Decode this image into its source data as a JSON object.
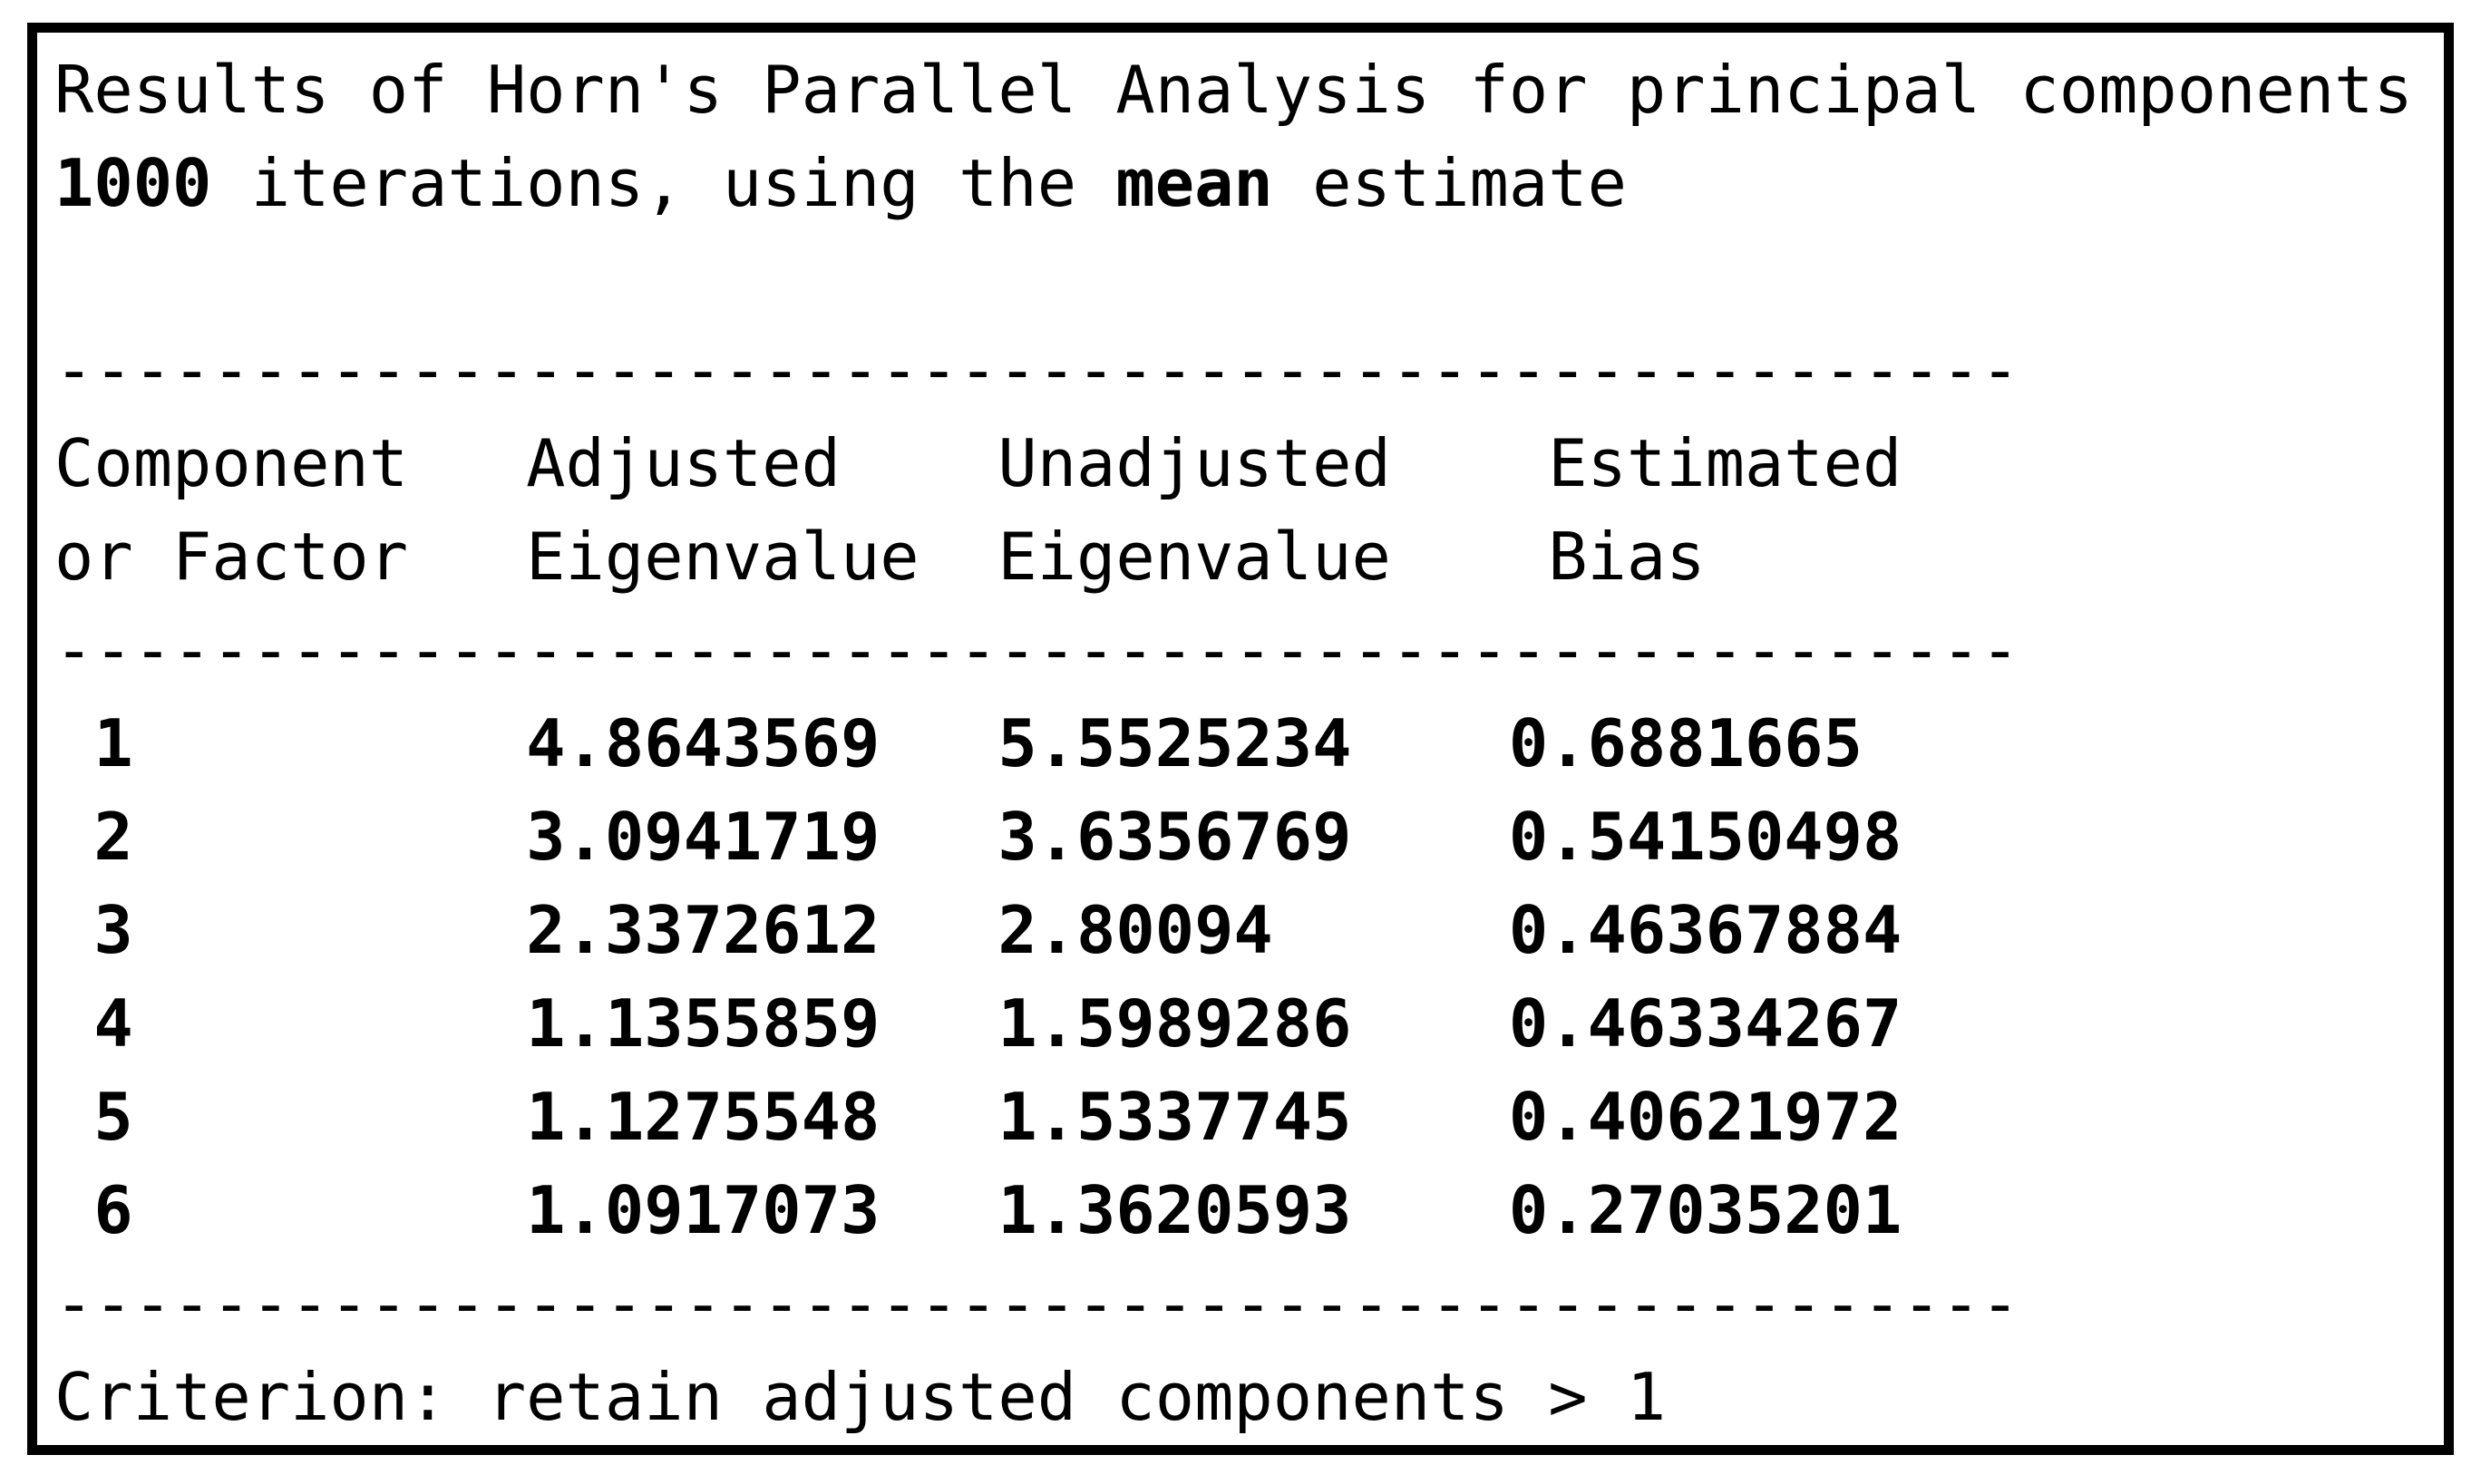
{
  "report": {
    "title": "Results of Horn's Parallel Analysis for principal components",
    "iterations": {
      "count": "1000",
      "middle": " iterations, using the ",
      "estimate_type": "mean",
      "suffix": " estimate"
    },
    "separator": "--------------------------------------------------",
    "criterion": "Criterion: retain adjusted components > 1"
  },
  "table": {
    "header_row1": {
      "col1": "Component",
      "col2": "Adjusted",
      "col3": "Unadjusted",
      "col4": "Estimated"
    },
    "header_row2": {
      "col1": "or Factor",
      "col2": "Eigenvalue",
      "col3": "Eigenvalue",
      "col4": "Bias"
    },
    "rows": [
      {
        "component": "1",
        "adjusted": "4.8643569",
        "unadjusted": "5.5525234",
        "bias": "0.6881665"
      },
      {
        "component": "2",
        "adjusted": "3.0941719",
        "unadjusted": "3.6356769",
        "bias": "0.54150498"
      },
      {
        "component": "3",
        "adjusted": "2.3372612",
        "unadjusted": "2.80094",
        "bias": "0.46367884"
      },
      {
        "component": "4",
        "adjusted": "1.1355859",
        "unadjusted": "1.5989286",
        "bias": "0.46334267"
      },
      {
        "component": "5",
        "adjusted": "1.1275548",
        "unadjusted": "1.5337745",
        "bias": "0.40621972"
      },
      {
        "component": "6",
        "adjusted": "1.0917073",
        "unadjusted": "1.3620593",
        "bias": "0.27035201"
      }
    ]
  },
  "colors": {
    "text": "#000000",
    "background": "#ffffff",
    "border": "#000000"
  }
}
